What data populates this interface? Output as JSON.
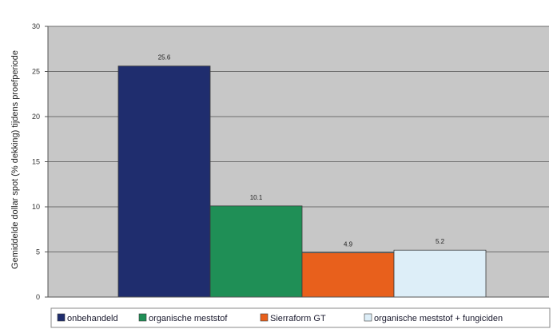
{
  "chart_data": {
    "type": "bar",
    "title": "",
    "xlabel": "",
    "ylabel": "Gemiddelde dollar spot (% dekking) tijdens proefperiode",
    "ylim": [
      0,
      30
    ],
    "yticks": [
      0,
      5,
      10,
      15,
      20,
      25,
      30
    ],
    "grid": true,
    "legend_position": "bottom",
    "categories": [
      "onbehandeld",
      "organische meststof",
      "Sierraform GT",
      "organische meststof + fungiciden"
    ],
    "values": [
      25.6,
      10.1,
      4.9,
      5.2
    ],
    "value_labels": [
      "25.6",
      "10.1",
      "4.9",
      "5.2"
    ],
    "colors": [
      "#1f2d6e",
      "#1f8f56",
      "#e8601c",
      "#ddeef8"
    ],
    "plot_background": "#c7c7c7"
  }
}
